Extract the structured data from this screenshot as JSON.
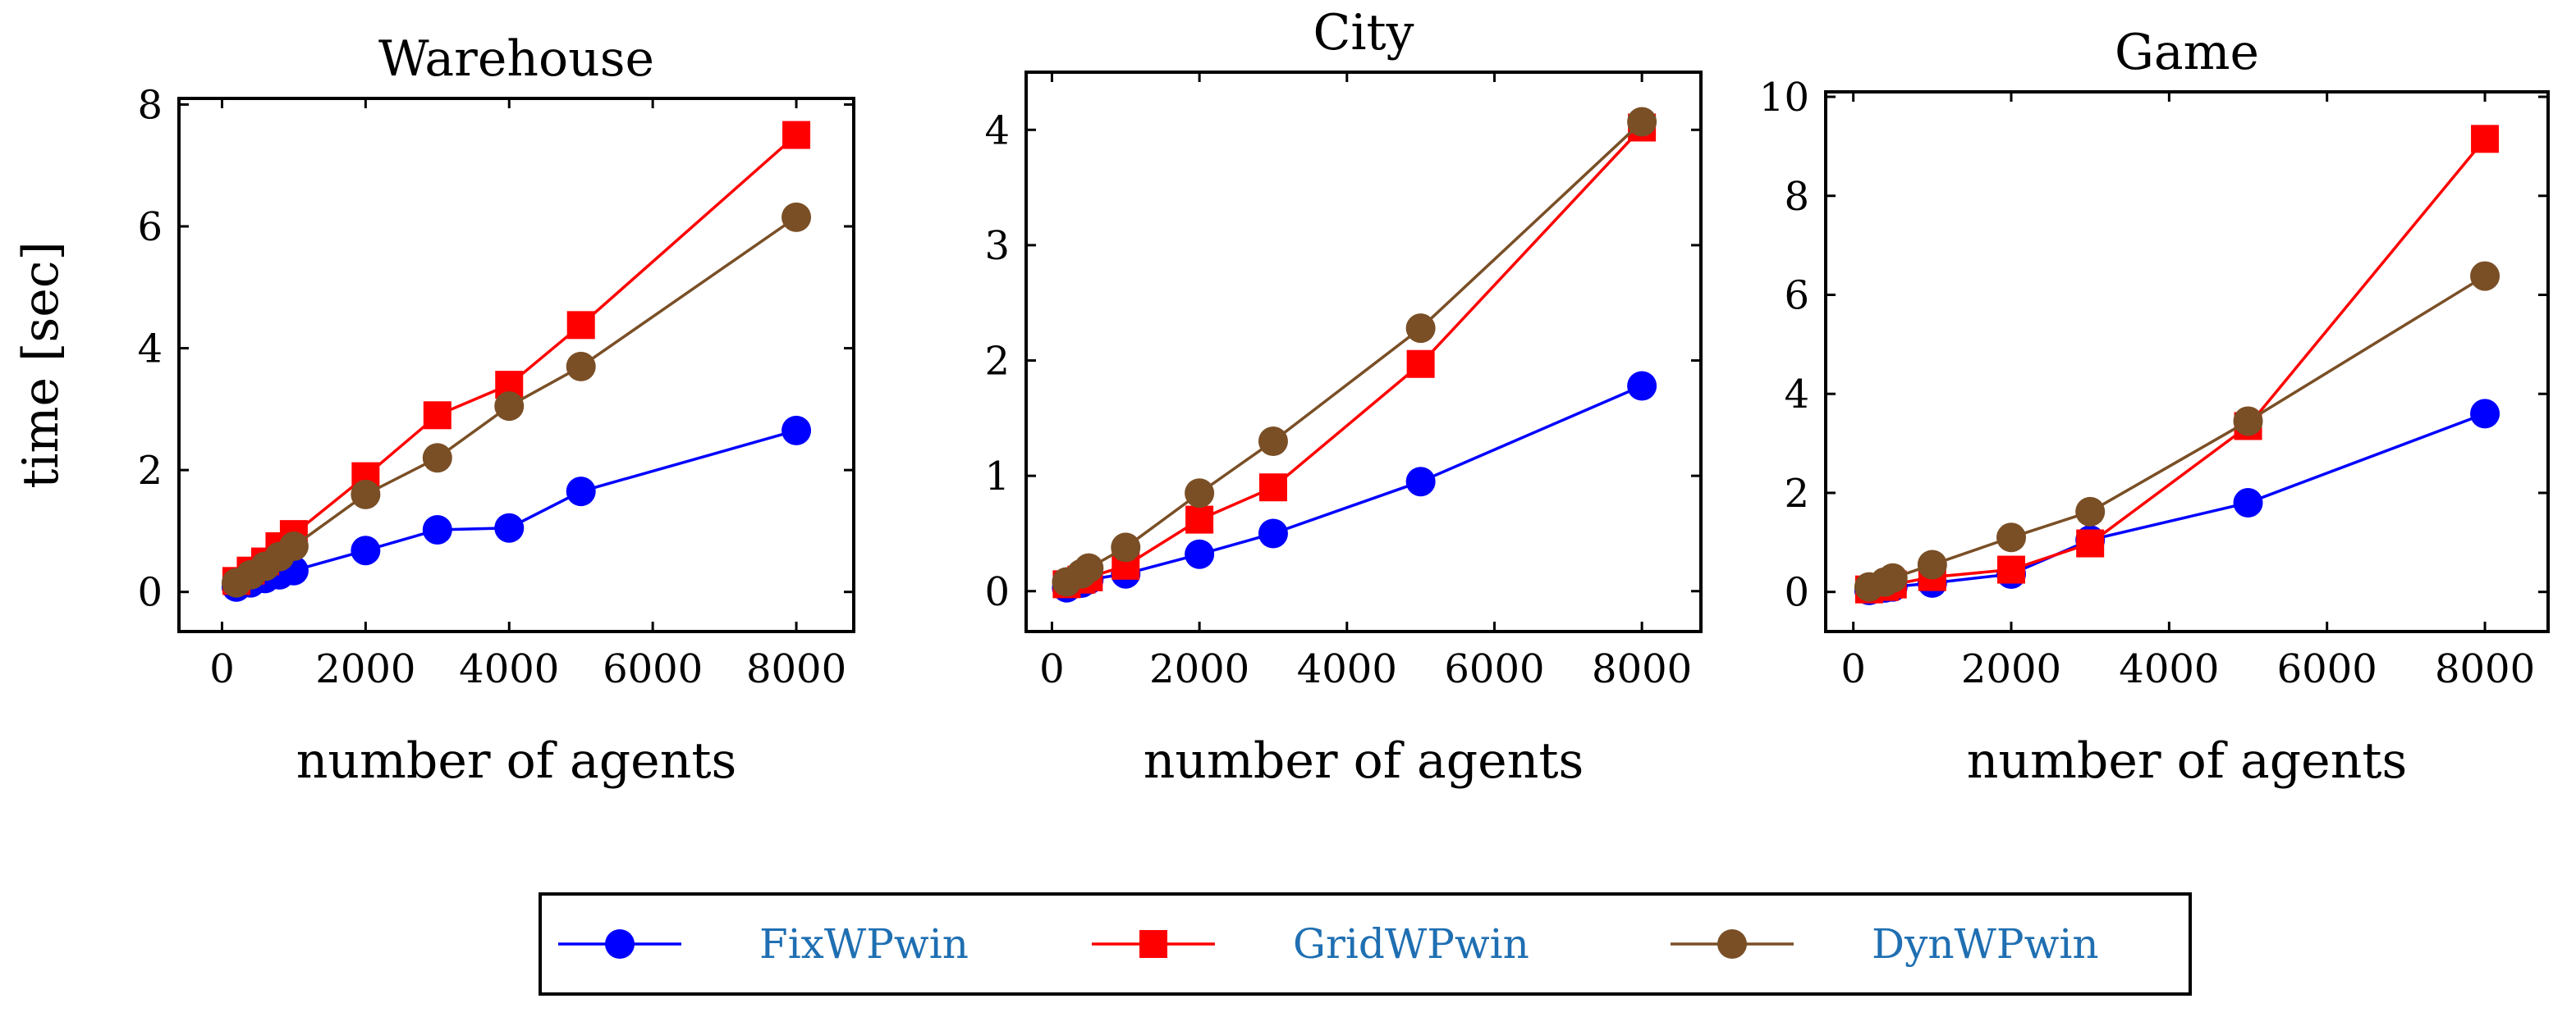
{
  "chart_data": [
    {
      "type": "line",
      "title": "Warehouse",
      "xlabel": "number of agents",
      "ylabel": "time [sec]",
      "xlim": [
        -600,
        8800
      ],
      "ylim": [
        -0.65,
        8.1
      ],
      "xticks": [
        0,
        2000,
        4000,
        6000,
        8000
      ],
      "xtick_labels": [
        "0",
        "2000",
        "4000",
        "6000",
        "8000"
      ],
      "yticks": [
        0,
        2,
        4,
        6,
        8
      ],
      "ytick_labels": [
        "0",
        "2",
        "4",
        "6",
        "8"
      ],
      "series": [
        {
          "name": "FixWPwin",
          "x": [
            200,
            400,
            600,
            800,
            1000,
            2000,
            3000,
            4000,
            5000,
            8000
          ],
          "y": [
            0.08,
            0.15,
            0.22,
            0.28,
            0.35,
            0.68,
            1.02,
            1.05,
            1.65,
            2.65
          ]
        },
        {
          "name": "GridWPwin",
          "x": [
            200,
            400,
            600,
            800,
            1000,
            2000,
            3000,
            4000,
            5000,
            8000
          ],
          "y": [
            0.18,
            0.35,
            0.5,
            0.75,
            0.95,
            1.9,
            2.9,
            3.4,
            4.38,
            7.5
          ]
        },
        {
          "name": "DynWPwin",
          "x": [
            200,
            400,
            600,
            800,
            1000,
            2000,
            3000,
            4000,
            5000,
            8000
          ],
          "y": [
            0.15,
            0.28,
            0.42,
            0.58,
            0.75,
            1.6,
            2.2,
            3.05,
            3.7,
            6.15
          ]
        }
      ]
    },
    {
      "type": "line",
      "title": "City",
      "xlabel": "number of agents",
      "ylabel": "",
      "xlim": [
        -350,
        8800
      ],
      "ylim": [
        -0.35,
        4.5
      ],
      "xticks": [
        0,
        2000,
        4000,
        6000,
        8000
      ],
      "xtick_labels": [
        "0",
        "2000",
        "4000",
        "6000",
        "8000"
      ],
      "yticks": [
        0,
        1,
        2,
        3,
        4
      ],
      "ytick_labels": [
        "0",
        "1",
        "2",
        "3",
        "4"
      ],
      "series": [
        {
          "name": "FixWPwin",
          "x": [
            200,
            400,
            500,
            1000,
            2000,
            3000,
            5000,
            8000
          ],
          "y": [
            0.03,
            0.07,
            0.1,
            0.15,
            0.32,
            0.5,
            0.95,
            1.78
          ]
        },
        {
          "name": "GridWPwin",
          "x": [
            200,
            400,
            500,
            1000,
            2000,
            3000,
            5000,
            8000
          ],
          "y": [
            0.06,
            0.1,
            0.12,
            0.22,
            0.62,
            0.9,
            1.97,
            4.02
          ]
        },
        {
          "name": "DynWPwin",
          "x": [
            200,
            400,
            500,
            1000,
            2000,
            3000,
            5000,
            8000
          ],
          "y": [
            0.08,
            0.15,
            0.2,
            0.38,
            0.85,
            1.3,
            2.28,
            4.07
          ]
        }
      ]
    },
    {
      "type": "line",
      "title": "Game",
      "xlabel": "number of agents",
      "ylabel": "",
      "xlim": [
        -350,
        8800
      ],
      "ylim": [
        -0.8,
        10.1
      ],
      "xticks": [
        0,
        2000,
        4000,
        6000,
        8000
      ],
      "xtick_labels": [
        "0",
        "2000",
        "4000",
        "6000",
        "8000"
      ],
      "yticks": [
        0,
        2,
        4,
        6,
        8,
        10
      ],
      "ytick_labels": [
        "0",
        "2",
        "4",
        "6",
        "8",
        "10"
      ],
      "series": [
        {
          "name": "FixWPwin",
          "x": [
            200,
            400,
            500,
            1000,
            2000,
            3000,
            5000,
            8000
          ],
          "y": [
            0.03,
            0.08,
            0.1,
            0.18,
            0.36,
            1.05,
            1.8,
            3.6
          ]
        },
        {
          "name": "GridWPwin",
          "x": [
            200,
            400,
            500,
            1000,
            2000,
            3000,
            5000,
            8000
          ],
          "y": [
            0.05,
            0.1,
            0.15,
            0.3,
            0.45,
            0.98,
            3.35,
            9.15
          ]
        },
        {
          "name": "DynWPwin",
          "x": [
            200,
            400,
            500,
            1000,
            2000,
            3000,
            5000,
            8000
          ],
          "y": [
            0.1,
            0.2,
            0.28,
            0.55,
            1.1,
            1.62,
            3.45,
            6.38
          ]
        }
      ]
    }
  ],
  "legend": {
    "position": "bottom-center",
    "entries": [
      {
        "name": "FixWPwin",
        "marker": "circle",
        "color": "#0000ff"
      },
      {
        "name": "GridWPwin",
        "marker": "square",
        "color": "#ff0000"
      },
      {
        "name": "DynWPwin",
        "marker": "circle",
        "color": "#7a4f26"
      }
    ]
  },
  "colors": {
    "FixWPwin": "#0000ff",
    "GridWPwin": "#ff0000",
    "DynWPwin": "#7a4f26",
    "legend_text": "#1f6fb2"
  }
}
